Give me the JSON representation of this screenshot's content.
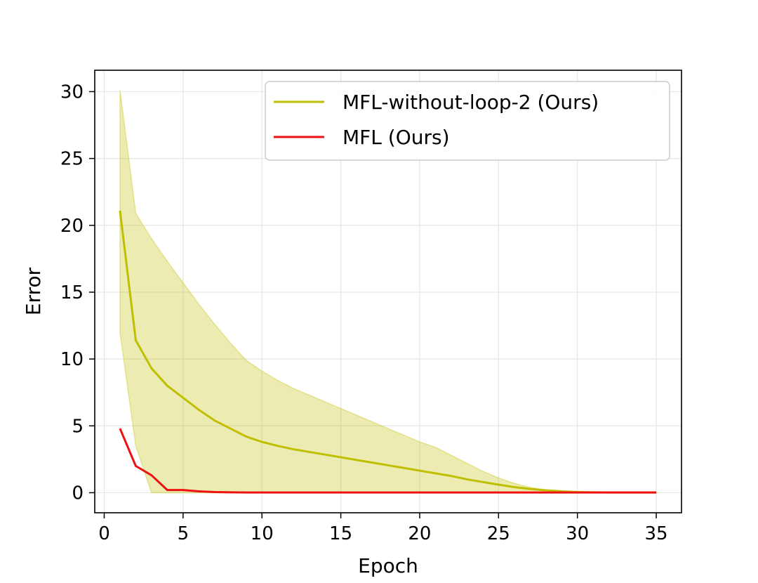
{
  "chart_data": {
    "type": "line",
    "title": "",
    "xlabel": "Epoch",
    "ylabel": "Error",
    "xlim": [
      -0.6,
      36.6
    ],
    "ylim": [
      -1.5,
      31.6
    ],
    "xticks": [
      0,
      5,
      10,
      15,
      20,
      25,
      30,
      35
    ],
    "yticks": [
      0,
      5,
      10,
      15,
      20,
      25,
      30
    ],
    "grid": true,
    "legend_position": "top-right",
    "series": [
      {
        "name": "MFL-without-loop-2 (Ours)",
        "color": "#bfbf00",
        "x": [
          1,
          2,
          3,
          4,
          5,
          6,
          7,
          8,
          9,
          10,
          11,
          12,
          13,
          14,
          15,
          16,
          17,
          18,
          19,
          20,
          21,
          22,
          23,
          24,
          25,
          26,
          27,
          28,
          29,
          30,
          31,
          32,
          33,
          34,
          35
        ],
        "values": [
          21.1,
          11.4,
          9.3,
          8.0,
          7.1,
          6.2,
          5.4,
          4.8,
          4.2,
          3.8,
          3.5,
          3.25,
          3.05,
          2.85,
          2.65,
          2.45,
          2.25,
          2.05,
          1.85,
          1.65,
          1.45,
          1.25,
          1.0,
          0.8,
          0.6,
          0.42,
          0.28,
          0.18,
          0.1,
          0.05,
          0.03,
          0.02,
          0.02,
          0.02,
          0.02
        ],
        "band_upper": [
          30.1,
          20.9,
          19.0,
          17.3,
          15.7,
          14.1,
          12.6,
          11.2,
          9.9,
          9.1,
          8.4,
          7.8,
          7.3,
          6.8,
          6.3,
          5.8,
          5.3,
          4.8,
          4.3,
          3.8,
          3.4,
          2.8,
          2.2,
          1.6,
          1.1,
          0.7,
          0.4,
          0.2,
          0.1,
          0.05,
          0.03,
          0.02,
          0.02,
          0.02,
          0.02
        ],
        "band_lower": [
          12.0,
          3.5,
          0.0,
          0.0,
          0.0,
          0.0,
          0.0,
          0.0,
          0.0,
          0.0,
          0.0,
          0.0,
          0.0,
          0.0,
          0.0,
          0.0,
          0.0,
          0.0,
          0.0,
          0.0,
          0.0,
          0.0,
          0.0,
          0.0,
          0.0,
          0.0,
          0.0,
          0.0,
          0.0,
          0.0,
          0.0,
          0.0,
          0.0,
          0.0,
          0.0
        ]
      },
      {
        "name": "MFL (Ours)",
        "color": "#ee1111",
        "x": [
          1,
          2,
          3,
          4,
          5,
          6,
          7,
          8,
          9,
          10,
          11,
          12,
          13,
          14,
          15,
          16,
          17,
          18,
          19,
          20,
          21,
          22,
          23,
          24,
          25,
          26,
          27,
          28,
          29,
          30,
          31,
          32,
          33,
          34,
          35
        ],
        "values": [
          4.8,
          2.0,
          1.3,
          0.2,
          0.2,
          0.1,
          0.05,
          0.03,
          0.02,
          0.02,
          0.02,
          0.02,
          0.02,
          0.02,
          0.02,
          0.02,
          0.02,
          0.02,
          0.02,
          0.02,
          0.02,
          0.02,
          0.02,
          0.02,
          0.02,
          0.02,
          0.02,
          0.02,
          0.02,
          0.02,
          0.02,
          0.02,
          0.02,
          0.02,
          0.02
        ]
      }
    ]
  }
}
